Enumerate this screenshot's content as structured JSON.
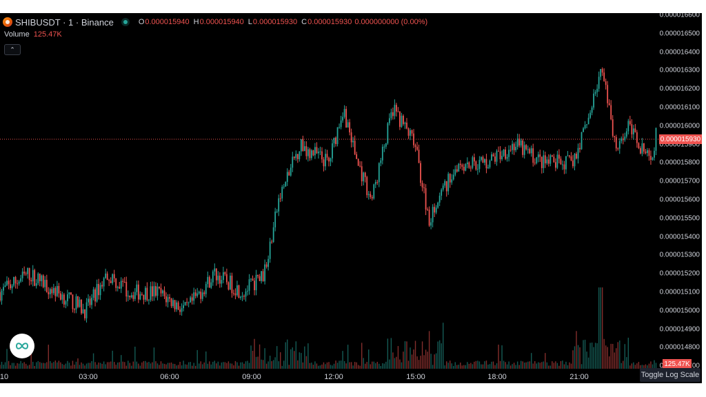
{
  "header": {
    "symbol": "SHIBUSDT · 1 · Binance",
    "symbol_icon": "shib-coin-icon",
    "status_icon": "market-open-dot-icon",
    "ohlc": [
      {
        "key": "O",
        "value": "0.000015940"
      },
      {
        "key": "H",
        "value": "0.000015940"
      },
      {
        "key": "L",
        "value": "0.000015930"
      },
      {
        "key": "C",
        "value": "0.000015930"
      }
    ],
    "change": "0.000000000 (0.00%)"
  },
  "volume": {
    "label": "Volume",
    "value": "125.47K"
  },
  "collapse_button": "⌃",
  "price_axis": {
    "labels": [
      "0.000016600",
      "0.000016500",
      "0.000016400",
      "0.000016300",
      "0.000016200",
      "0.000016100",
      "0.000016000",
      "0.000015900",
      "0.000015800",
      "0.000015700",
      "0.000015600",
      "0.000015500",
      "0.000015400",
      "0.000015300",
      "0.000015200",
      "0.000015100",
      "0.000015000",
      "0.000014900",
      "0.000014800",
      "0.000014700"
    ],
    "current_price_tag": "0.000015930",
    "volume_tag": "125.47K"
  },
  "time_axis": {
    "labels": [
      "10",
      "03:00",
      "06:00",
      "09:00",
      "12:00",
      "15:00",
      "18:00",
      "21:00"
    ]
  },
  "toggle_log_scale": "Toggle Log Scale",
  "colors": {
    "up": "#26a69a",
    "down": "#ef5350",
    "background": "#000000",
    "text": "#d1d4dc"
  },
  "chart_data": {
    "type": "candlestick",
    "interval": "1",
    "unit": "USDT",
    "ylim": [
      1.47e-05,
      1.66e-05
    ],
    "last_price": 1.593e-05,
    "close_path": {
      "t": [
        "00:00",
        "01:00",
        "02:00",
        "03:00",
        "03:45",
        "04:30",
        "05:30",
        "06:30",
        "07:30",
        "08:30",
        "09:15",
        "09:45",
        "10:30",
        "11:30",
        "12:00",
        "12:30",
        "13:00",
        "13:45",
        "14:30",
        "15:00",
        "16:00",
        "17:00",
        "18:00",
        "19:00",
        "20:00",
        "20:30",
        "21:00",
        "21:10",
        "21:30",
        "22:00",
        "22:45",
        "23:00",
        "23:30"
      ],
      "price": [
        1.51e-05,
        1.52e-05,
        1.51e-05,
        1.5e-05,
        1.52e-05,
        1.51e-05,
        1.51e-05,
        1.5e-05,
        1.52e-05,
        1.51e-05,
        1.52e-05,
        1.56e-05,
        1.59e-05,
        1.58e-05,
        1.61e-05,
        1.58e-05,
        1.56e-05,
        1.61e-05,
        1.59e-05,
        1.55e-05,
        1.58e-05,
        1.58e-05,
        1.59e-05,
        1.58e-05,
        1.58e-05,
        1.6e-05,
        1.63e-05,
        1.62e-05,
        1.59e-05,
        1.6e-05,
        1.58e-05,
        1.6e-05,
        1.59e-05
      ]
    },
    "volume": {
      "last": "125.47K",
      "spike_times": [
        "09:45",
        "14:30",
        "21:00"
      ]
    }
  }
}
